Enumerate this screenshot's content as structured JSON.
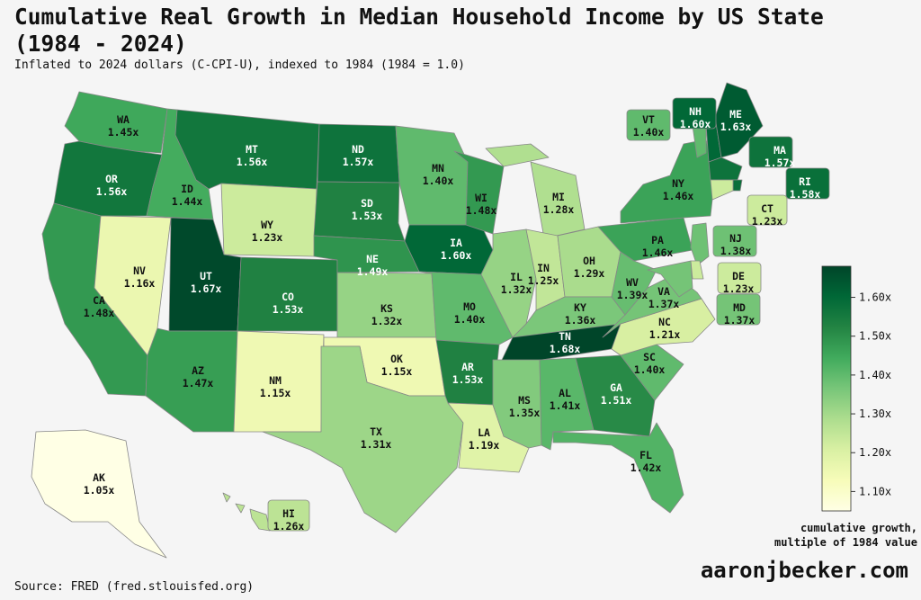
{
  "title": "Cumulative Real Growth in Median Household Income by US State\n(1984 - 2024)",
  "subtitle": "Inflated to 2024 dollars (C-CPI-U), indexed to 1984 (1984 = 1.0)",
  "source": "Source: FRED (fred.stlouisfed.org)",
  "brand": "aaronjbecker.com",
  "legend": {
    "title": "cumulative growth,\nmultiple of 1984 value",
    "ticks": [
      "1.10x",
      "1.20x",
      "1.30x",
      "1.40x",
      "1.50x",
      "1.60x"
    ],
    "tick_values": [
      1.1,
      1.2,
      1.3,
      1.4,
      1.5,
      1.6
    ],
    "min": 1.05,
    "max": 1.68
  },
  "colors": {
    "scale": [
      "#ffffe5",
      "#f7fcb9",
      "#d9f0a3",
      "#addd8e",
      "#78c679",
      "#41ab5d",
      "#238443",
      "#006837",
      "#004529"
    ],
    "background": "#f5f5f5"
  },
  "chart_data": {
    "type": "choropleth",
    "states": [
      {
        "code": "WA",
        "value": 1.45,
        "label": "1.45x"
      },
      {
        "code": "OR",
        "value": 1.56,
        "label": "1.56x"
      },
      {
        "code": "CA",
        "value": 1.48,
        "label": "1.48x"
      },
      {
        "code": "NV",
        "value": 1.16,
        "label": "1.16x"
      },
      {
        "code": "ID",
        "value": 1.44,
        "label": "1.44x"
      },
      {
        "code": "MT",
        "value": 1.56,
        "label": "1.56x"
      },
      {
        "code": "WY",
        "value": 1.23,
        "label": "1.23x"
      },
      {
        "code": "UT",
        "value": 1.67,
        "label": "1.67x"
      },
      {
        "code": "AZ",
        "value": 1.47,
        "label": "1.47x"
      },
      {
        "code": "CO",
        "value": 1.53,
        "label": "1.53x"
      },
      {
        "code": "NM",
        "value": 1.15,
        "label": "1.15x"
      },
      {
        "code": "ND",
        "value": 1.57,
        "label": "1.57x"
      },
      {
        "code": "SD",
        "value": 1.53,
        "label": "1.53x"
      },
      {
        "code": "NE",
        "value": 1.49,
        "label": "1.49x"
      },
      {
        "code": "KS",
        "value": 1.32,
        "label": "1.32x"
      },
      {
        "code": "OK",
        "value": 1.15,
        "label": "1.15x"
      },
      {
        "code": "TX",
        "value": 1.31,
        "label": "1.31x"
      },
      {
        "code": "MN",
        "value": 1.4,
        "label": "1.40x"
      },
      {
        "code": "IA",
        "value": 1.6,
        "label": "1.60x"
      },
      {
        "code": "MO",
        "value": 1.4,
        "label": "1.40x"
      },
      {
        "code": "AR",
        "value": 1.53,
        "label": "1.53x"
      },
      {
        "code": "LA",
        "value": 1.19,
        "label": "1.19x"
      },
      {
        "code": "WI",
        "value": 1.48,
        "label": "1.48x"
      },
      {
        "code": "IL",
        "value": 1.32,
        "label": "1.32x"
      },
      {
        "code": "MI",
        "value": 1.28,
        "label": "1.28x"
      },
      {
        "code": "IN",
        "value": 1.25,
        "label": "1.25x"
      },
      {
        "code": "OH",
        "value": 1.29,
        "label": "1.29x"
      },
      {
        "code": "KY",
        "value": 1.36,
        "label": "1.36x"
      },
      {
        "code": "TN",
        "value": 1.68,
        "label": "1.68x"
      },
      {
        "code": "MS",
        "value": 1.35,
        "label": "1.35x"
      },
      {
        "code": "AL",
        "value": 1.41,
        "label": "1.41x"
      },
      {
        "code": "GA",
        "value": 1.51,
        "label": "1.51x"
      },
      {
        "code": "FL",
        "value": 1.42,
        "label": "1.42x"
      },
      {
        "code": "SC",
        "value": 1.4,
        "label": "1.40x"
      },
      {
        "code": "NC",
        "value": 1.21,
        "label": "1.21x"
      },
      {
        "code": "VA",
        "value": 1.37,
        "label": "1.37x"
      },
      {
        "code": "WV",
        "value": 1.39,
        "label": "1.39x"
      },
      {
        "code": "PA",
        "value": 1.46,
        "label": "1.46x"
      },
      {
        "code": "NY",
        "value": 1.46,
        "label": "1.46x"
      },
      {
        "code": "VT",
        "value": 1.4,
        "label": "1.40x"
      },
      {
        "code": "NH",
        "value": 1.6,
        "label": "1.60x"
      },
      {
        "code": "ME",
        "value": 1.63,
        "label": "1.63x"
      },
      {
        "code": "MA",
        "value": 1.57,
        "label": "1.57x"
      },
      {
        "code": "RI",
        "value": 1.58,
        "label": "1.58x"
      },
      {
        "code": "CT",
        "value": 1.23,
        "label": "1.23x"
      },
      {
        "code": "NJ",
        "value": 1.38,
        "label": "1.38x"
      },
      {
        "code": "DE",
        "value": 1.23,
        "label": "1.23x"
      },
      {
        "code": "MD",
        "value": 1.37,
        "label": "1.37x"
      },
      {
        "code": "AK",
        "value": 1.05,
        "label": "1.05x"
      },
      {
        "code": "HI",
        "value": 1.26,
        "label": "1.26x"
      }
    ]
  }
}
